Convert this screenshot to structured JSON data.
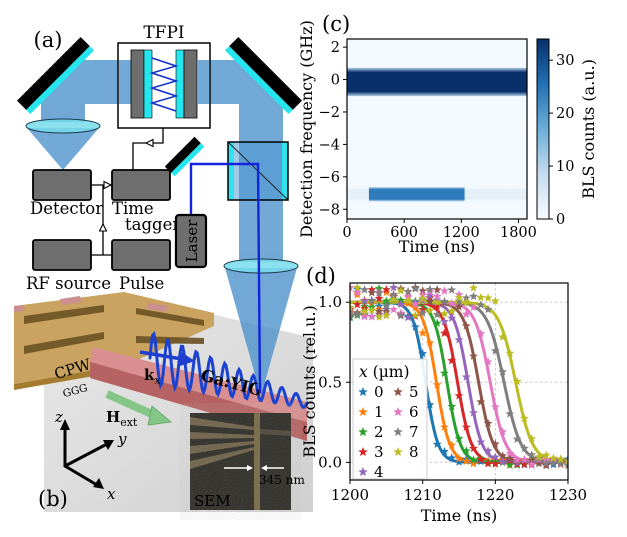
{
  "figure_labels": {
    "a": "(a)",
    "b": "(b)",
    "c": "(c)",
    "d": "(d)"
  },
  "panel_a": {
    "tfpi": "TFPI",
    "detector": "Detector",
    "time_tagger_line1": "Time",
    "time_tagger_line2": "tagger",
    "rf_source": "RF source",
    "pulse": "Pulse",
    "laser": "Laser"
  },
  "panel_b": {
    "cpw": "CPW",
    "ggg": "GGG",
    "waveguide_material": "Ga:YIG",
    "wavevector_main": "k",
    "wavevector_sub": "x",
    "field_main": "H",
    "field_sub": "ext",
    "axis_z": "z",
    "axis_y": "y",
    "axis_x": "x",
    "sem_label": "SEM",
    "sem_scale_value": "345 nm"
  },
  "chart_data": [
    {
      "id": "c",
      "type": "heatmap",
      "xlabel": "Time (ns)",
      "ylabel": "Detection frequency (GHz)",
      "xlim": [
        0,
        1890
      ],
      "ylim": [
        -8.6,
        2.5
      ],
      "xticks": [
        0,
        600,
        1200,
        1800
      ],
      "yticks": [
        2,
        0,
        -2,
        -4,
        -6,
        -8
      ],
      "colormap": "Blues",
      "background_counts": 0.5,
      "colorbar": {
        "label": "BLS counts (a.u.)",
        "ticks": [
          0,
          10,
          20,
          30
        ],
        "vmax": 34
      },
      "features": [
        {
          "name": "elastic laser line",
          "time_ns": [
            0,
            1890
          ],
          "freq_GHz": [
            -0.9,
            0.6
          ],
          "counts": 34
        },
        {
          "name": "spin wave signal pulse",
          "time_ns": [
            230,
            1235
          ],
          "freq_GHz": [
            -7.4,
            -6.75
          ],
          "counts": 24
        },
        {
          "name": "faint signal trace",
          "time_ns": [
            0,
            1890
          ],
          "freq_GHz": [
            -7.35,
            -6.8
          ],
          "counts": 3
        }
      ]
    },
    {
      "id": "d",
      "type": "line",
      "xlabel": "Time (ns)",
      "ylabel": "BLS counts (rel.u.)",
      "xlim": [
        1200,
        1230
      ],
      "ylim": [
        -0.11,
        1.12
      ],
      "xticks": [
        1200,
        1210,
        1220,
        1230
      ],
      "yticks": [
        0.0,
        0.5,
        1.0
      ],
      "grid": true,
      "marker": "star",
      "legend": {
        "title": "x (µm)",
        "columns": 2,
        "location": "center-left"
      },
      "model": "y(t) = 1 / (1 + exp((t - t50)/tau)); star markers follow model plus noise",
      "marker_step_ns": 1,
      "marker_noise_rel": 0.08,
      "series": [
        {
          "label": "0",
          "color": "#1f77b4",
          "t50_ns": 1210.4,
          "tau_ns": 0.85
        },
        {
          "label": "1",
          "color": "#ff7f0e",
          "t50_ns": 1211.9,
          "tau_ns": 0.9
        },
        {
          "label": "2",
          "color": "#2ca02c",
          "t50_ns": 1213.35,
          "tau_ns": 0.9
        },
        {
          "label": "3",
          "color": "#d62728",
          "t50_ns": 1214.8,
          "tau_ns": 0.95
        },
        {
          "label": "4",
          "color": "#9467bd",
          "t50_ns": 1216.25,
          "tau_ns": 0.95
        },
        {
          "label": "5",
          "color": "#8c564b",
          "t50_ns": 1217.7,
          "tau_ns": 1.0
        },
        {
          "label": "6",
          "color": "#e377c2",
          "t50_ns": 1219.3,
          "tau_ns": 1.05
        },
        {
          "label": "7",
          "color": "#7f7f7f",
          "t50_ns": 1221.2,
          "tau_ns": 1.15
        },
        {
          "label": "8",
          "color": "#bcbd22",
          "t50_ns": 1222.8,
          "tau_ns": 1.15
        }
      ]
    }
  ]
}
